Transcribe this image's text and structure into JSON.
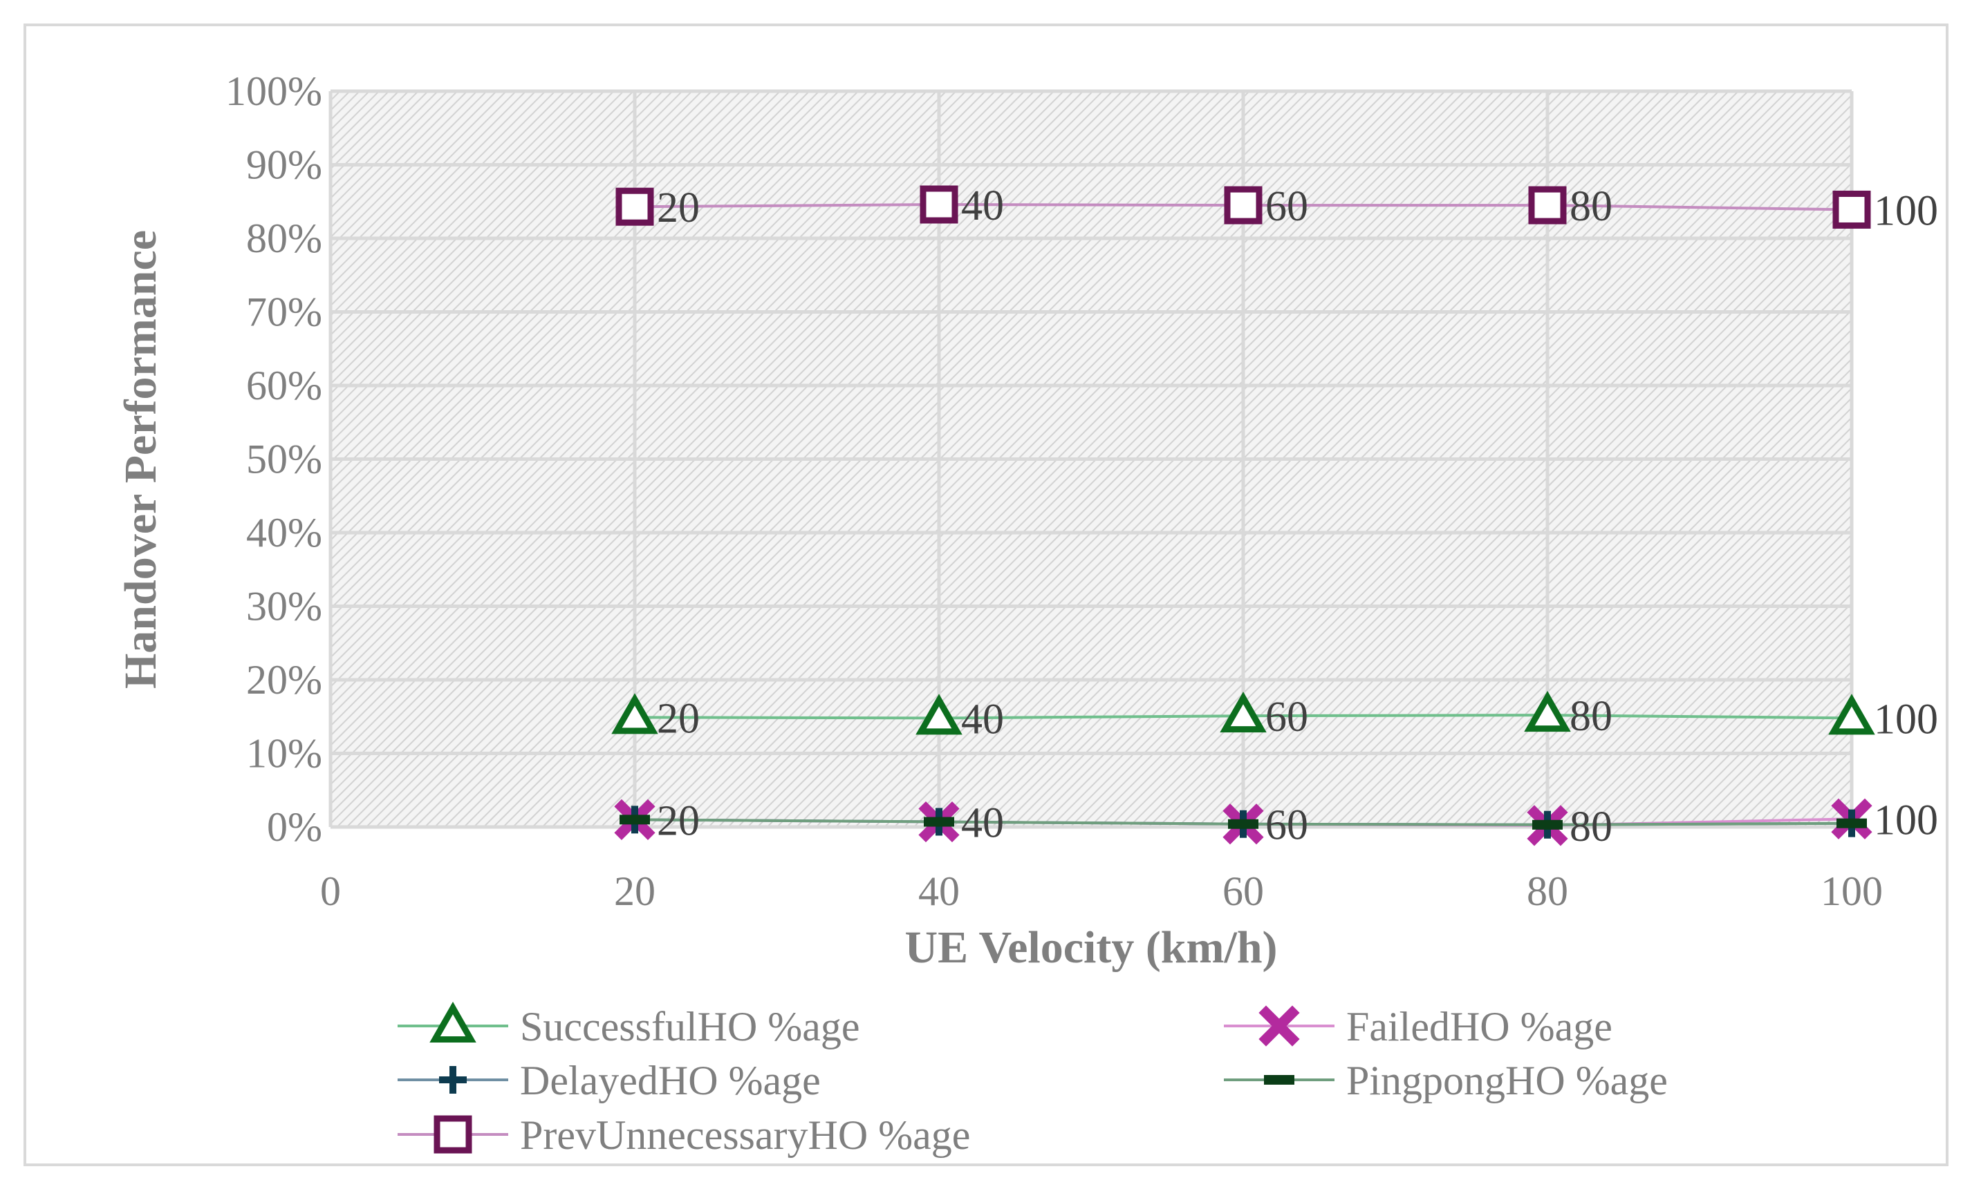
{
  "chart_data": {
    "type": "line",
    "title": "",
    "xlabel": "UE Velocity (km/h)",
    "ylabel": "Handover  Performance",
    "xlim": [
      0,
      100
    ],
    "ylim": [
      0,
      1
    ],
    "x_ticks": [
      "0",
      "20",
      "40",
      "60",
      "80",
      "100"
    ],
    "y_ticks": [
      "0%",
      "10%",
      "20%",
      "30%",
      "40%",
      "50%",
      "60%",
      "70%",
      "80%",
      "90%",
      "100%"
    ],
    "grid": true,
    "legend_position": "bottom",
    "x": [
      20,
      40,
      60,
      80,
      100
    ],
    "data_labels": [
      "20",
      "40",
      "60",
      "80",
      "100"
    ],
    "series": [
      {
        "name": "SuccessfulHO %age",
        "marker": "triangle",
        "line_color": "#6fbf8c",
        "marker_color": "#0c6e1e",
        "values": [
          0.149,
          0.148,
          0.151,
          0.152,
          0.148
        ]
      },
      {
        "name": "FailedHO %age",
        "marker": "x",
        "line_color": "#d98fd0",
        "marker_color": "#b32a9e",
        "values": [
          0.01,
          0.007,
          0.004,
          0.002,
          0.011
        ]
      },
      {
        "name": "DelayedHO %age",
        "marker": "plus",
        "line_color": "#6f8fa3",
        "marker_color": "#0d3b4f",
        "values": [
          0.01,
          0.007,
          0.004,
          0.003,
          0.005
        ]
      },
      {
        "name": "PingpongHO %age",
        "marker": "dash",
        "line_color": "#6f9e7e",
        "marker_color": "#0b3d17",
        "values": [
          0.01,
          0.007,
          0.004,
          0.003,
          0.005
        ]
      },
      {
        "name": "PrevUnnecessaryHO %age",
        "marker": "square",
        "line_color": "#c48cc0",
        "marker_color": "#6a1454",
        "values": [
          0.843,
          0.846,
          0.845,
          0.845,
          0.839
        ]
      }
    ],
    "label_series": [
      0,
      1,
      4
    ],
    "colors": {
      "grid": "#d9d9d9",
      "plot_bg": "#f2f2f2",
      "hatch": "#d0d0d0",
      "border": "#d9d9d9"
    }
  }
}
